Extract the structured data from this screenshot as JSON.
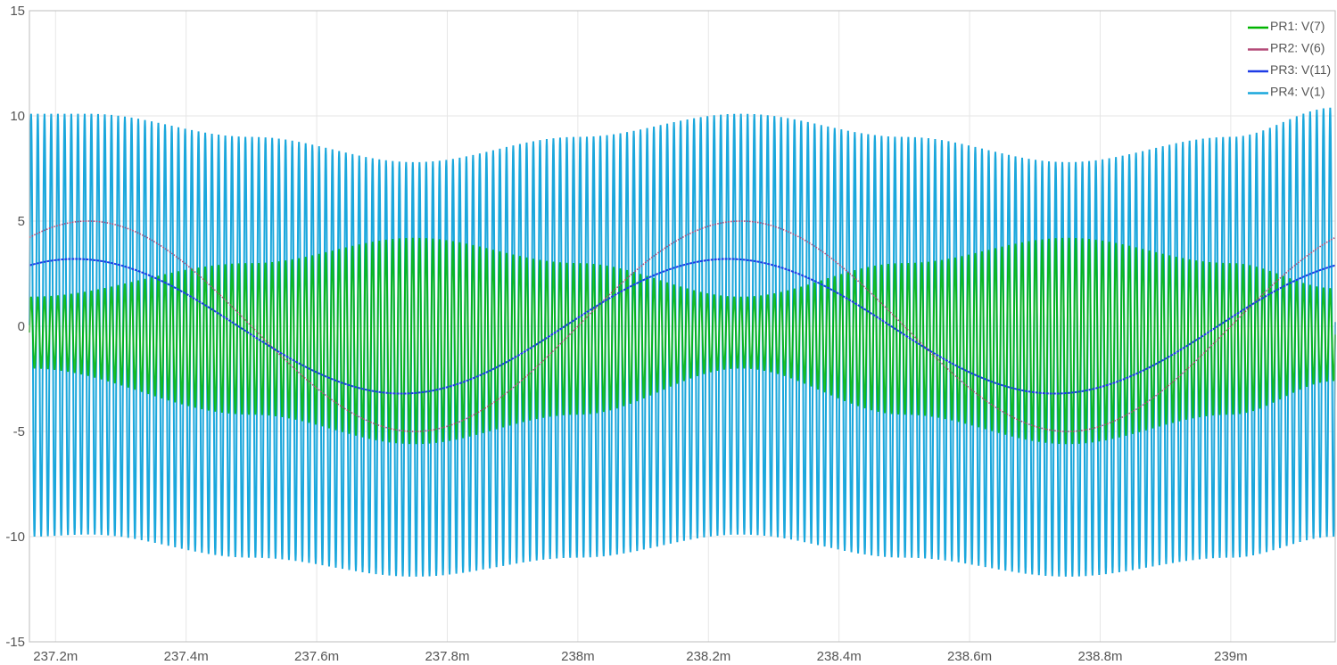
{
  "chart_data": {
    "type": "line",
    "title": "",
    "xlabel": "",
    "ylabel": "",
    "xlim": [
      237.16,
      239.16
    ],
    "ylim": [
      -15,
      15
    ],
    "x_unit_scale": "milli",
    "x_ticks": [
      237.2,
      237.4,
      237.6,
      237.8,
      238.0,
      238.2,
      238.4,
      238.6,
      238.8,
      239.0
    ],
    "x_tick_labels": [
      "237.2m",
      "237.4m",
      "237.6m",
      "237.8m",
      "238m",
      "238.2m",
      "238.4m",
      "238.6m",
      "238.8m",
      "239m"
    ],
    "y_ticks": [
      -15,
      -10,
      -5,
      0,
      5,
      10,
      15
    ],
    "y_tick_labels": [
      "-15",
      "-10",
      "-5",
      "0",
      "5",
      "10",
      "15"
    ],
    "grid": true,
    "legend_position": "top-right",
    "series": [
      {
        "name": "PR1: V(7)",
        "color": "#00b400",
        "carrier_cycles_per_axis_unit": 97.5,
        "envelope_period": 1.0,
        "envelope_peak_x": 237.75,
        "samples": [
          {
            "x": 237.16,
            "max": 1.4,
            "min": -2.0
          },
          {
            "x": 237.5,
            "max": 3.0,
            "min": -4.2
          },
          {
            "x": 237.75,
            "max": 4.2,
            "min": -5.6
          },
          {
            "x": 238.0,
            "max": 3.0,
            "min": -4.2
          },
          {
            "x": 238.25,
            "max": 1.4,
            "min": -2.0
          },
          {
            "x": 238.5,
            "max": 3.0,
            "min": -4.2
          },
          {
            "x": 238.75,
            "max": 4.2,
            "min": -5.6
          },
          {
            "x": 239.0,
            "max": 3.0,
            "min": -4.2
          },
          {
            "x": 239.16,
            "max": 1.8,
            "min": -2.6
          }
        ]
      },
      {
        "name": "PR2: V(6)",
        "color": "#b44a78",
        "amplitude": 5.0,
        "period": 1.0,
        "peak_x": 238.25,
        "samples": [
          {
            "x": 237.25,
            "y": 5.0
          },
          {
            "x": 237.5,
            "y": 0.0
          },
          {
            "x": 237.75,
            "y": -5.0
          },
          {
            "x": 238.0,
            "y": 0.0
          },
          {
            "x": 238.25,
            "y": 5.0
          },
          {
            "x": 238.5,
            "y": 0.0
          },
          {
            "x": 238.75,
            "y": -5.0
          },
          {
            "x": 239.0,
            "y": 0.0
          }
        ]
      },
      {
        "name": "PR3: V(11)",
        "color": "#1e3ce6",
        "amplitude": 3.2,
        "period": 1.0,
        "peak_x": 238.23,
        "samples": [
          {
            "x": 237.23,
            "y": 3.1
          },
          {
            "x": 237.48,
            "y": 0.0
          },
          {
            "x": 237.73,
            "y": -3.3
          },
          {
            "x": 237.98,
            "y": 0.0
          },
          {
            "x": 238.23,
            "y": 3.1
          },
          {
            "x": 238.48,
            "y": 0.0
          },
          {
            "x": 238.73,
            "y": -3.3
          },
          {
            "x": 238.98,
            "y": 0.0
          }
        ]
      },
      {
        "name": "PR4: V(1)",
        "color": "#1aa7dc",
        "carrier_cycles_per_axis_unit": 97.5,
        "envelope_period": 1.0,
        "envelope_peak_x": 238.25,
        "samples": [
          {
            "x": 237.16,
            "max": 10.1,
            "min": -10.0
          },
          {
            "x": 237.25,
            "max": 10.1,
            "min": -9.9
          },
          {
            "x": 237.5,
            "max": 9.0,
            "min": -11.0
          },
          {
            "x": 237.75,
            "max": 7.8,
            "min": -11.9
          },
          {
            "x": 238.0,
            "max": 9.0,
            "min": -11.0
          },
          {
            "x": 238.25,
            "max": 10.1,
            "min": -9.9
          },
          {
            "x": 238.5,
            "max": 9.0,
            "min": -11.0
          },
          {
            "x": 238.75,
            "max": 7.8,
            "min": -11.9
          },
          {
            "x": 239.0,
            "max": 9.0,
            "min": -11.0
          },
          {
            "x": 239.16,
            "max": 10.4,
            "min": -10.0
          }
        ]
      }
    ]
  }
}
